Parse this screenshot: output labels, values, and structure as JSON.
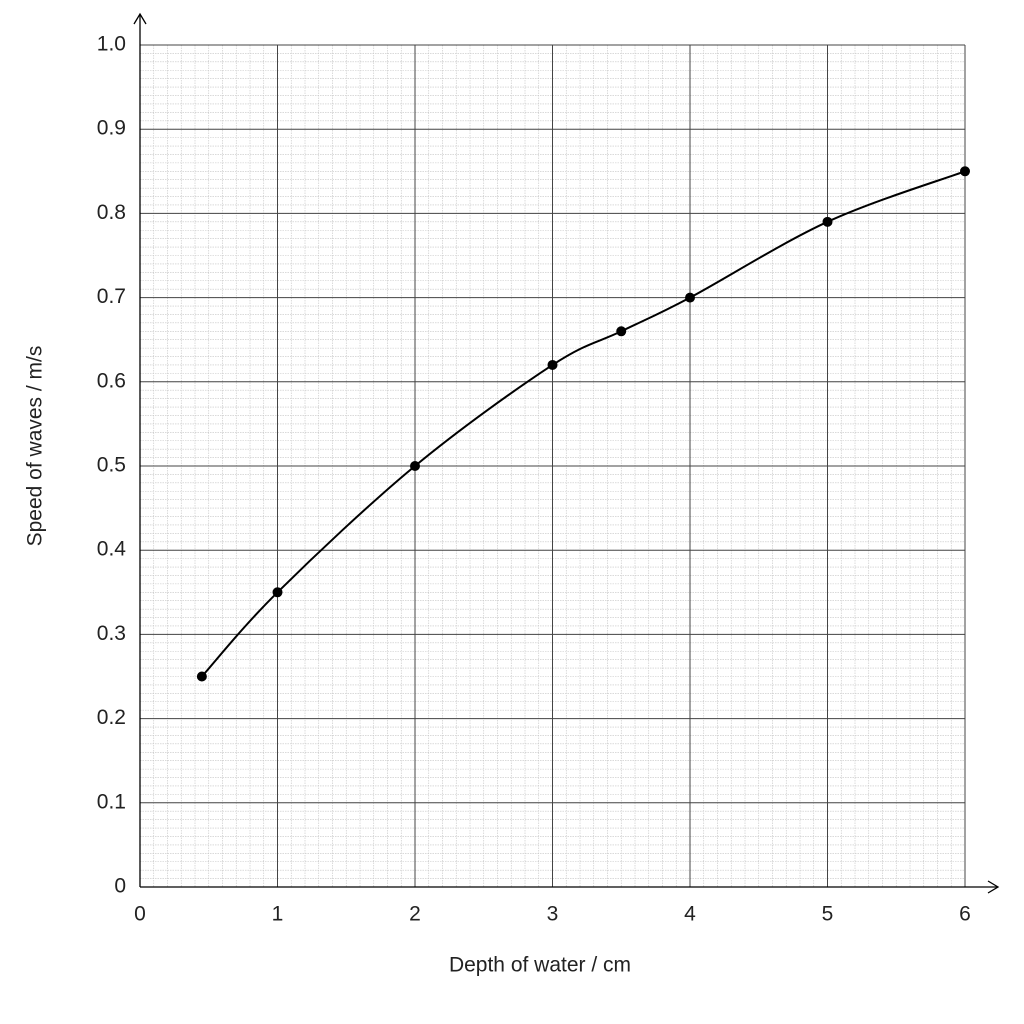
{
  "chart_data": {
    "type": "line",
    "xlabel": "Depth of water / cm",
    "ylabel": "Speed of waves / m/s",
    "x": [
      0.45,
      1,
      2,
      3,
      3.5,
      4,
      5,
      6
    ],
    "values": [
      0.25,
      0.35,
      0.5,
      0.62,
      0.66,
      0.7,
      0.79,
      0.85
    ],
    "color": "#000000",
    "smooth": true,
    "markers": true,
    "xlim": [
      0,
      6
    ],
    "xticks": [
      0,
      1,
      2,
      3,
      4,
      5,
      6
    ],
    "ylim": [
      0,
      1
    ],
    "yticks": [
      0,
      0.1,
      0.2,
      0.3,
      0.4,
      0.5,
      0.6,
      0.7,
      0.8,
      0.9,
      {
        "value": 1,
        "label": "1.0"
      }
    ],
    "grid": true,
    "minor_grid": true
  }
}
